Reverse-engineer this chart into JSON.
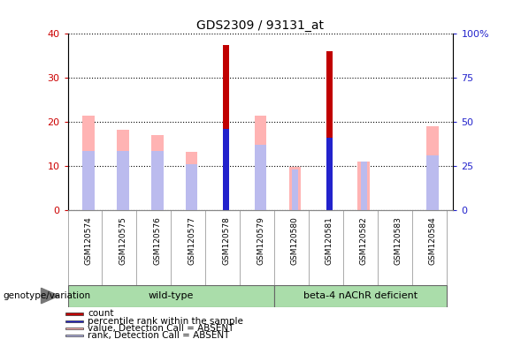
{
  "title": "GDS2309 / 93131_at",
  "samples": [
    "GSM120574",
    "GSM120575",
    "GSM120576",
    "GSM120577",
    "GSM120578",
    "GSM120579",
    "GSM120580",
    "GSM120581",
    "GSM120582",
    "GSM120583",
    "GSM120584"
  ],
  "count_values": [
    0,
    0,
    0,
    0,
    37.5,
    0,
    0,
    36.0,
    0,
    0,
    0
  ],
  "percentile_rank": [
    0,
    0,
    0,
    0,
    18.5,
    0,
    0,
    16.5,
    0,
    0,
    0
  ],
  "absent_value": [
    21.5,
    18.2,
    17.0,
    13.2,
    0,
    21.5,
    9.8,
    0,
    11.0,
    0,
    19.0
  ],
  "absent_rank": [
    13.5,
    13.5,
    13.5,
    10.5,
    0,
    14.8,
    0,
    0,
    0,
    0,
    12.5
  ],
  "absent_rank_small": [
    0,
    0,
    0,
    0,
    0,
    0,
    9.2,
    6.2,
    11.0,
    0,
    0
  ],
  "wild_type_count": 6,
  "beta4_count": 5,
  "ylim": [
    0,
    40
  ],
  "y2lim": [
    0,
    100
  ],
  "yticks": [
    0,
    10,
    20,
    30,
    40
  ],
  "y2ticks": [
    0,
    25,
    50,
    75,
    100
  ],
  "y2ticklabels": [
    "0",
    "25",
    "50",
    "75",
    "100%"
  ],
  "color_count": "#C00000",
  "color_percentile": "#2222CC",
  "color_absent_value": "#FFB3B3",
  "color_absent_rank": "#BBBBEE",
  "color_wt_bg": "#AADDAA",
  "color_beta_bg": "#AADDAA",
  "color_label_left": "#CC0000",
  "color_label_right": "#2222CC",
  "fig_width": 5.89,
  "fig_height": 3.84,
  "legend_items": [
    {
      "color": "#C00000",
      "label": "count"
    },
    {
      "color": "#2222CC",
      "label": "percentile rank within the sample"
    },
    {
      "color": "#FFB3B3",
      "label": "value, Detection Call = ABSENT"
    },
    {
      "color": "#BBBBEE",
      "label": "rank, Detection Call = ABSENT"
    }
  ]
}
